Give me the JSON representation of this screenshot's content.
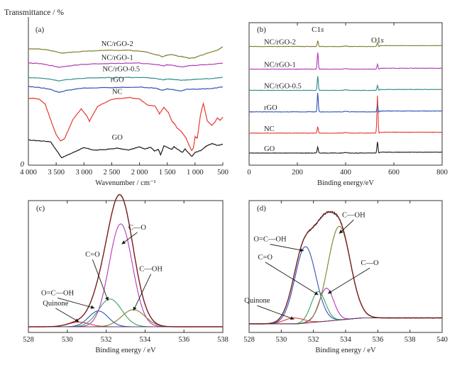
{
  "colors": {
    "black": "#1a1a1a",
    "red": "#e8392f",
    "blue": "#2f55b7",
    "teal": "#2f8f8a",
    "purple": "#b23ab8",
    "olive": "#7f7f2e",
    "green": "#3aa15c",
    "envelope": "#7a1f1f",
    "frame": "#333333"
  },
  "chart_data": [
    {
      "id": "a",
      "panel_label": "(a)",
      "type": "line",
      "ylabel_top": "Transmittance / %",
      "y_origin_label": "0",
      "xlabel": "Wavenumber / cm⁻¹",
      "xlim": [
        4000,
        500
      ],
      "xticks": [
        4000,
        3500,
        3000,
        2500,
        2000,
        1500,
        1000,
        500
      ],
      "xtick_labels": [
        "4 000",
        "3 500",
        "3 000",
        "2 500",
        "2 000",
        "1 500",
        "1 000",
        "500"
      ],
      "ylim": [
        0,
        1
      ],
      "series": [
        {
          "name": "GO",
          "color": "black",
          "points": [
            [
              4000,
              0.176
            ],
            [
              3800,
              0.171
            ],
            [
              3600,
              0.165
            ],
            [
              3550,
              0.135
            ],
            [
              3400,
              0.052
            ],
            [
              3250,
              0.079
            ],
            [
              3100,
              0.106
            ],
            [
              3000,
              0.122
            ],
            [
              2800,
              0.105
            ],
            [
              2600,
              0.11
            ],
            [
              2400,
              0.119
            ],
            [
              2200,
              0.106
            ],
            [
              2000,
              0.128
            ],
            [
              1900,
              0.114
            ],
            [
              1800,
              0.126
            ],
            [
              1730,
              0.099
            ],
            [
              1660,
              0.112
            ],
            [
              1620,
              0.072
            ],
            [
              1560,
              0.135
            ],
            [
              1420,
              0.11
            ],
            [
              1380,
              0.129
            ],
            [
              1230,
              0.089
            ],
            [
              1180,
              0.114
            ],
            [
              1060,
              0.06
            ],
            [
              1000,
              0.089
            ],
            [
              900,
              0.103
            ],
            [
              800,
              0.133
            ],
            [
              700,
              0.152
            ],
            [
              600,
              0.139
            ],
            [
              500,
              0.146
            ]
          ]
        },
        {
          "name": "NC",
          "color": "red",
          "points": [
            [
              4000,
              0.468
            ],
            [
              3900,
              0.47
            ],
            [
              3800,
              0.462
            ],
            [
              3700,
              0.43
            ],
            [
              3600,
              0.319
            ],
            [
              3500,
              0.214
            ],
            [
              3420,
              0.17
            ],
            [
              3350,
              0.186
            ],
            [
              3200,
              0.319
            ],
            [
              3050,
              0.395
            ],
            [
              2950,
              0.346
            ],
            [
              2900,
              0.309
            ],
            [
              2850,
              0.346
            ],
            [
              2750,
              0.414
            ],
            [
              2500,
              0.462
            ],
            [
              2200,
              0.475
            ],
            [
              2000,
              0.465
            ],
            [
              1850,
              0.42
            ],
            [
              1720,
              0.415
            ],
            [
              1640,
              0.361
            ],
            [
              1560,
              0.405
            ],
            [
              1480,
              0.37
            ],
            [
              1420,
              0.31
            ],
            [
              1370,
              0.29
            ],
            [
              1320,
              0.26
            ],
            [
              1250,
              0.236
            ],
            [
              1200,
              0.21
            ],
            [
              1160,
              0.19
            ],
            [
              1110,
              0.14
            ],
            [
              1060,
              0.103
            ],
            [
              1030,
              0.12
            ],
            [
              1000,
              0.2
            ],
            [
              960,
              0.19
            ],
            [
              900,
              0.36
            ],
            [
              850,
              0.434
            ],
            [
              780,
              0.31
            ],
            [
              700,
              0.28
            ],
            [
              650,
              0.298
            ],
            [
              600,
              0.332
            ],
            [
              550,
              0.315
            ],
            [
              500,
              0.337
            ]
          ]
        },
        {
          "name": "rGO",
          "color": "blue",
          "points": [
            [
              4000,
              0.552
            ],
            [
              3800,
              0.545
            ],
            [
              3600,
              0.532
            ],
            [
              3450,
              0.511
            ],
            [
              3300,
              0.526
            ],
            [
              3000,
              0.541
            ],
            [
              2500,
              0.544
            ],
            [
              2000,
              0.548
            ],
            [
              1800,
              0.543
            ],
            [
              1700,
              0.539
            ],
            [
              1600,
              0.527
            ],
            [
              1500,
              0.535
            ],
            [
              1400,
              0.53
            ],
            [
              1250,
              0.52
            ],
            [
              1150,
              0.534
            ],
            [
              1000,
              0.533
            ],
            [
              700,
              0.538
            ],
            [
              500,
              0.549
            ]
          ]
        },
        {
          "name": "NC/rGO-0.5",
          "color": "teal",
          "points": [
            [
              4000,
              0.614
            ],
            [
              3800,
              0.612
            ],
            [
              3600,
              0.603
            ],
            [
              3450,
              0.592
            ],
            [
              3300,
              0.6
            ],
            [
              3000,
              0.611
            ],
            [
              2500,
              0.615
            ],
            [
              2000,
              0.616
            ],
            [
              1700,
              0.609
            ],
            [
              1560,
              0.599
            ],
            [
              1500,
              0.605
            ],
            [
              1400,
              0.603
            ],
            [
              1250,
              0.595
            ],
            [
              1100,
              0.6
            ],
            [
              1000,
              0.602
            ],
            [
              700,
              0.608
            ],
            [
              500,
              0.616
            ]
          ]
        },
        {
          "name": "NC/rGO-1",
          "color": "purple",
          "points": [
            [
              4000,
              0.717
            ],
            [
              3800,
              0.713
            ],
            [
              3600,
              0.7
            ],
            [
              3450,
              0.687
            ],
            [
              3300,
              0.696
            ],
            [
              3000,
              0.708
            ],
            [
              2500,
              0.714
            ],
            [
              2000,
              0.716
            ],
            [
              1700,
              0.707
            ],
            [
              1560,
              0.697
            ],
            [
              1500,
              0.705
            ],
            [
              1400,
              0.7
            ],
            [
              1250,
              0.689
            ],
            [
              1100,
              0.699
            ],
            [
              1000,
              0.7
            ],
            [
              700,
              0.708
            ],
            [
              500,
              0.716
            ]
          ]
        },
        {
          "name": "NC/rGO-2",
          "color": "olive",
          "points": [
            [
              4000,
              0.817
            ],
            [
              3700,
              0.813
            ],
            [
              3500,
              0.796
            ],
            [
              3400,
              0.786
            ],
            [
              3300,
              0.79
            ],
            [
              3000,
              0.8
            ],
            [
              2600,
              0.806
            ],
            [
              2200,
              0.806
            ],
            [
              1900,
              0.797
            ],
            [
              1750,
              0.78
            ],
            [
              1640,
              0.77
            ],
            [
              1590,
              0.76
            ],
            [
              1500,
              0.774
            ],
            [
              1400,
              0.775
            ],
            [
              1300,
              0.765
            ],
            [
              1200,
              0.76
            ],
            [
              1100,
              0.75
            ],
            [
              1000,
              0.755
            ],
            [
              900,
              0.77
            ],
            [
              750,
              0.79
            ],
            [
              600,
              0.807
            ],
            [
              500,
              0.83
            ]
          ]
        }
      ],
      "curve_labels": [
        {
          "text": "NC/rGO-2",
          "at": [
            2400,
            0.835
          ]
        },
        {
          "text": "NC/rGO-1",
          "at": [
            2400,
            0.738
          ]
        },
        {
          "text": "NC/rGO-0.5",
          "at": [
            2330,
            0.66
          ]
        },
        {
          "text": "rGO",
          "at": [
            2400,
            0.585
          ]
        },
        {
          "text": "NC",
          "at": [
            2400,
            0.5
          ]
        },
        {
          "text": "GO",
          "at": [
            2400,
            0.18
          ]
        }
      ],
      "grid": false
    },
    {
      "id": "b",
      "panel_label": "(b)",
      "type": "line",
      "xlabel": "Binding energy/eV",
      "xlim": [
        0,
        800
      ],
      "xticks": [
        0,
        200,
        400,
        600,
        800
      ],
      "ylim": [
        0,
        1
      ],
      "peak_labels": [
        {
          "text": "C1",
          "italic_suffix": "s",
          "at": [
            284.5,
            0.935
          ]
        },
        {
          "text": "O1",
          "italic_suffix": "s",
          "at": [
            532,
            0.86
          ]
        }
      ],
      "series": [
        {
          "name": "GO",
          "color": "black",
          "baseline": 0.085,
          "c1s_height": 0.045,
          "o1s_height": 0.078
        },
        {
          "name": "NC",
          "color": "red",
          "baseline": 0.225,
          "c1s_height": 0.045,
          "o1s_height": 0.262
        },
        {
          "name": "rGO",
          "color": "blue",
          "baseline": 0.374,
          "c1s_height": 0.136,
          "o1s_height": 0.041
        },
        {
          "name": "NC/rGO-0.5",
          "color": "teal",
          "baseline": 0.525,
          "c1s_height": 0.103,
          "o1s_height": 0.035
        },
        {
          "name": "NC/rGO-1",
          "color": "purple",
          "baseline": 0.674,
          "c1s_height": 0.12,
          "o1s_height": 0.034
        },
        {
          "name": "NC/rGO-2",
          "color": "olive",
          "baseline": 0.833,
          "c1s_height": 0.041,
          "o1s_height": 0.03
        }
      ],
      "grid": false
    },
    {
      "id": "c",
      "panel_label": "(c)",
      "type": "line",
      "xlabel": "Binding energy / eV",
      "xlim": [
        528,
        538
      ],
      "xticks": [
        528,
        530,
        532,
        534,
        536,
        538
      ],
      "ylim": [
        0,
        1
      ],
      "baseline": 0.043,
      "series": [
        {
          "name": "Quinone",
          "color": "red",
          "center": 530.6,
          "height": 0.035,
          "width": 0.55
        },
        {
          "name": "O=C—OH",
          "color": "blue",
          "center": 531.6,
          "height": 0.12,
          "width": 0.5
        },
        {
          "name": "C=O",
          "color": "green",
          "center": 532.2,
          "height": 0.21,
          "width": 0.6
        },
        {
          "name": "C—O",
          "color": "purple",
          "center": 532.75,
          "height": 0.78,
          "width": 0.6
        },
        {
          "name": "C—OH",
          "color": "olive",
          "center": 533.4,
          "height": 0.13,
          "width": 0.6
        }
      ],
      "annotations": [
        {
          "text": "C—O",
          "at": [
            533.6,
            0.78
          ],
          "arrow_to": [
            532.8,
            0.67
          ]
        },
        {
          "text": "C=O",
          "at": [
            531.3,
            0.575
          ],
          "arrow_to": [
            532.1,
            0.24
          ]
        },
        {
          "text": "C—OH",
          "at": [
            534.3,
            0.465
          ],
          "arrow_to": [
            533.4,
            0.165
          ]
        },
        {
          "text": "O=C—OH",
          "at": [
            529.5,
            0.283
          ],
          "arrow_to": [
            531.4,
            0.185
          ]
        },
        {
          "text": "Quinone",
          "at": [
            529.4,
            0.205
          ],
          "arrow_to": [
            530.6,
            0.08
          ]
        }
      ],
      "grid": false
    },
    {
      "id": "d",
      "panel_label": "(d)",
      "type": "line",
      "xlabel": "Binding energy / eV",
      "xlim": [
        528,
        540
      ],
      "xticks": [
        528,
        530,
        532,
        534,
        536,
        538,
        540
      ],
      "ylim": [
        0,
        1
      ],
      "baseline": 0.065,
      "baseline_right": 0.11,
      "series": [
        {
          "name": "Quinone",
          "color": "red",
          "center": 530.8,
          "height": 0.045,
          "width": 0.6
        },
        {
          "name": "O=C—OH",
          "color": "blue",
          "center": 531.5,
          "height": 0.58,
          "width": 0.65
        },
        {
          "name": "C=O",
          "color": "green",
          "center": 532.3,
          "height": 0.23,
          "width": 0.45
        },
        {
          "name": "C—O",
          "color": "purple",
          "center": 532.8,
          "height": 0.25,
          "width": 0.45
        },
        {
          "name": "C—OH",
          "color": "olive",
          "center": 533.6,
          "height": 0.71,
          "width": 0.7
        }
      ],
      "annotations": [
        {
          "text": "C—OH",
          "at": [
            534.5,
            0.875
          ],
          "arrow_to": [
            533.6,
            0.75
          ]
        },
        {
          "text": "O=C—OH",
          "at": [
            529.3,
            0.69
          ],
          "arrow_to": [
            531.4,
            0.62
          ]
        },
        {
          "text": "C=O",
          "at": [
            529.0,
            0.555
          ],
          "arrow_to": [
            532.3,
            0.285
          ]
        },
        {
          "text": "C—O",
          "at": [
            535.5,
            0.51
          ],
          "arrow_to": [
            532.9,
            0.295
          ]
        },
        {
          "text": "Quinone",
          "at": [
            528.5,
            0.225
          ],
          "arrow_to": [
            530.8,
            0.1
          ]
        }
      ],
      "grid": false
    }
  ]
}
